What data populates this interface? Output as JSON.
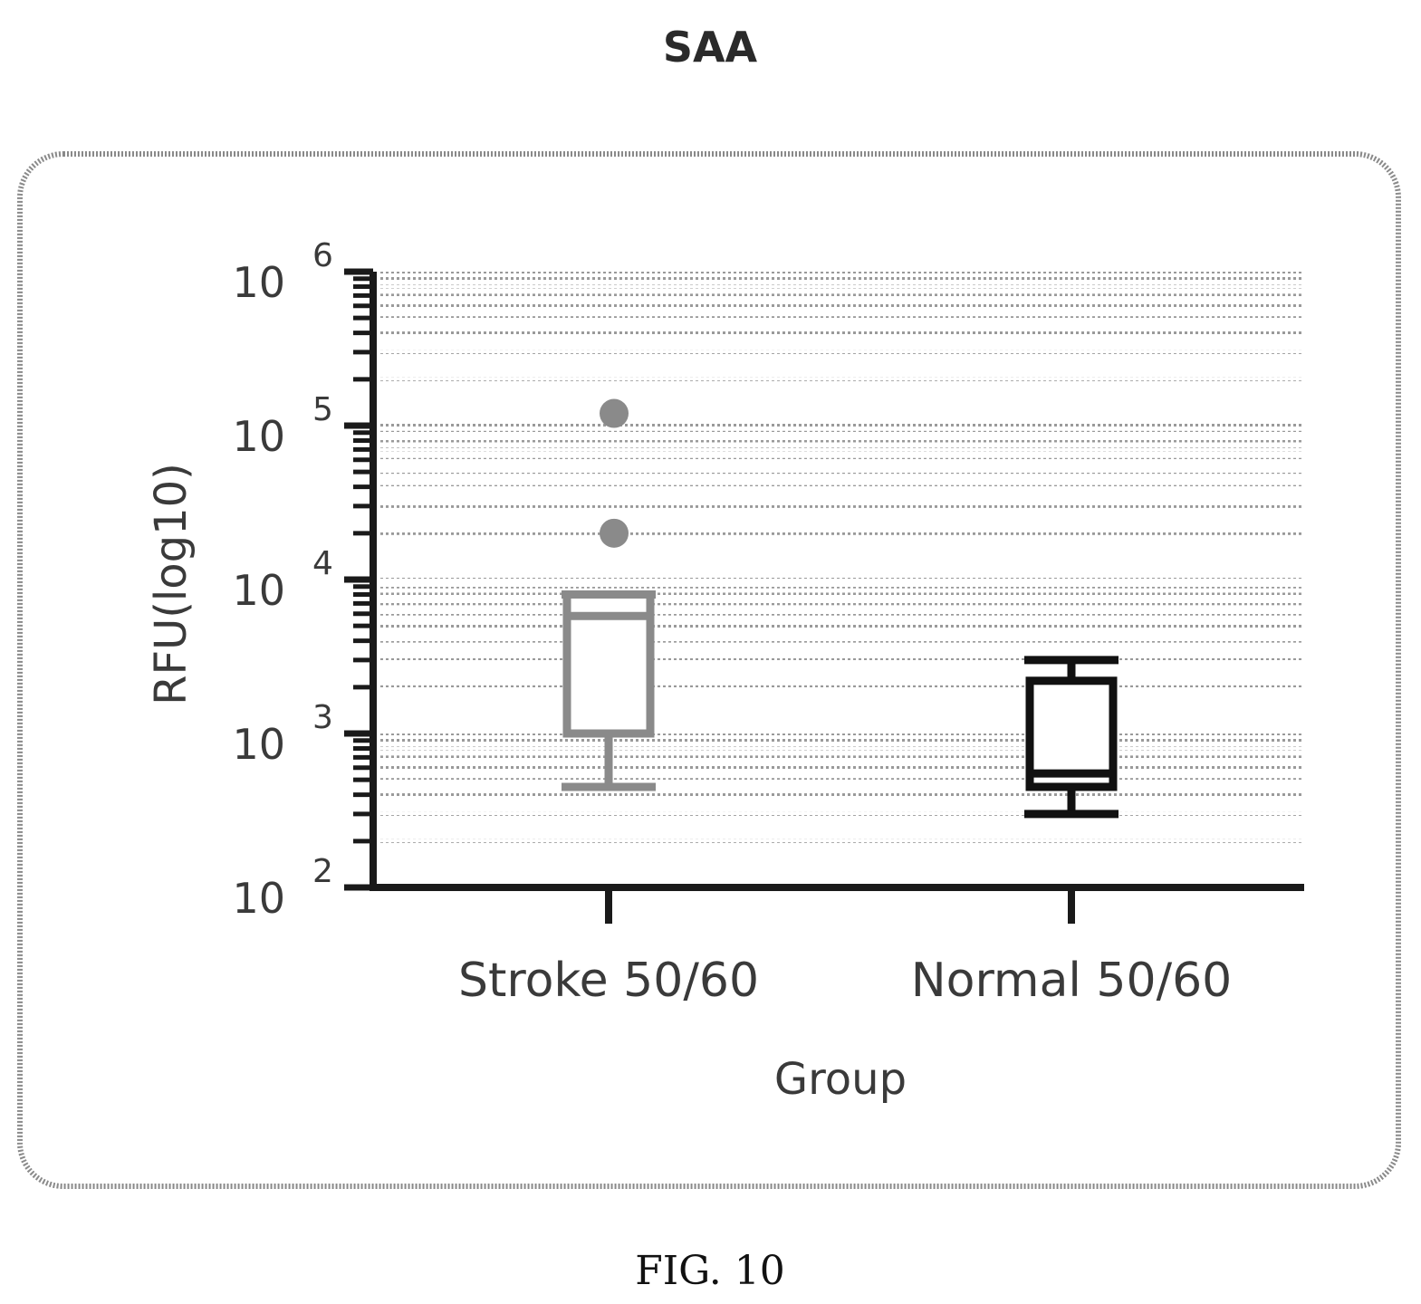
{
  "chart_data": {
    "type": "box",
    "title": "SAA",
    "xlabel": "Group",
    "ylabel": "RFU(log10)",
    "yscale": "log",
    "ylim": [
      100,
      1000000
    ],
    "grid": true,
    "yticks": [
      {
        "value": 100,
        "base": "10",
        "exp": "2"
      },
      {
        "value": 1000,
        "base": "10",
        "exp": "3"
      },
      {
        "value": 10000,
        "base": "10",
        "exp": "4"
      },
      {
        "value": 100000,
        "base": "10",
        "exp": "5"
      },
      {
        "value": 1000000,
        "base": "10",
        "exp": "6"
      }
    ],
    "categories": [
      "Stroke 50/60",
      "Normal 50/60"
    ],
    "boxes": [
      {
        "category": "Stroke 50/60",
        "whisker_low": 450,
        "q1": 1000,
        "median": 5800,
        "q3": 8000,
        "whisker_high": 8000,
        "outliers": [
          120000,
          20000
        ],
        "color": "#8a8a8a"
      },
      {
        "category": "Normal 50/60",
        "whisker_low": 300,
        "q1": 450,
        "median": 550,
        "q3": 2200,
        "whisker_high": 3000,
        "outliers": [],
        "color": "#111111"
      }
    ]
  },
  "caption": "FIG. 10"
}
